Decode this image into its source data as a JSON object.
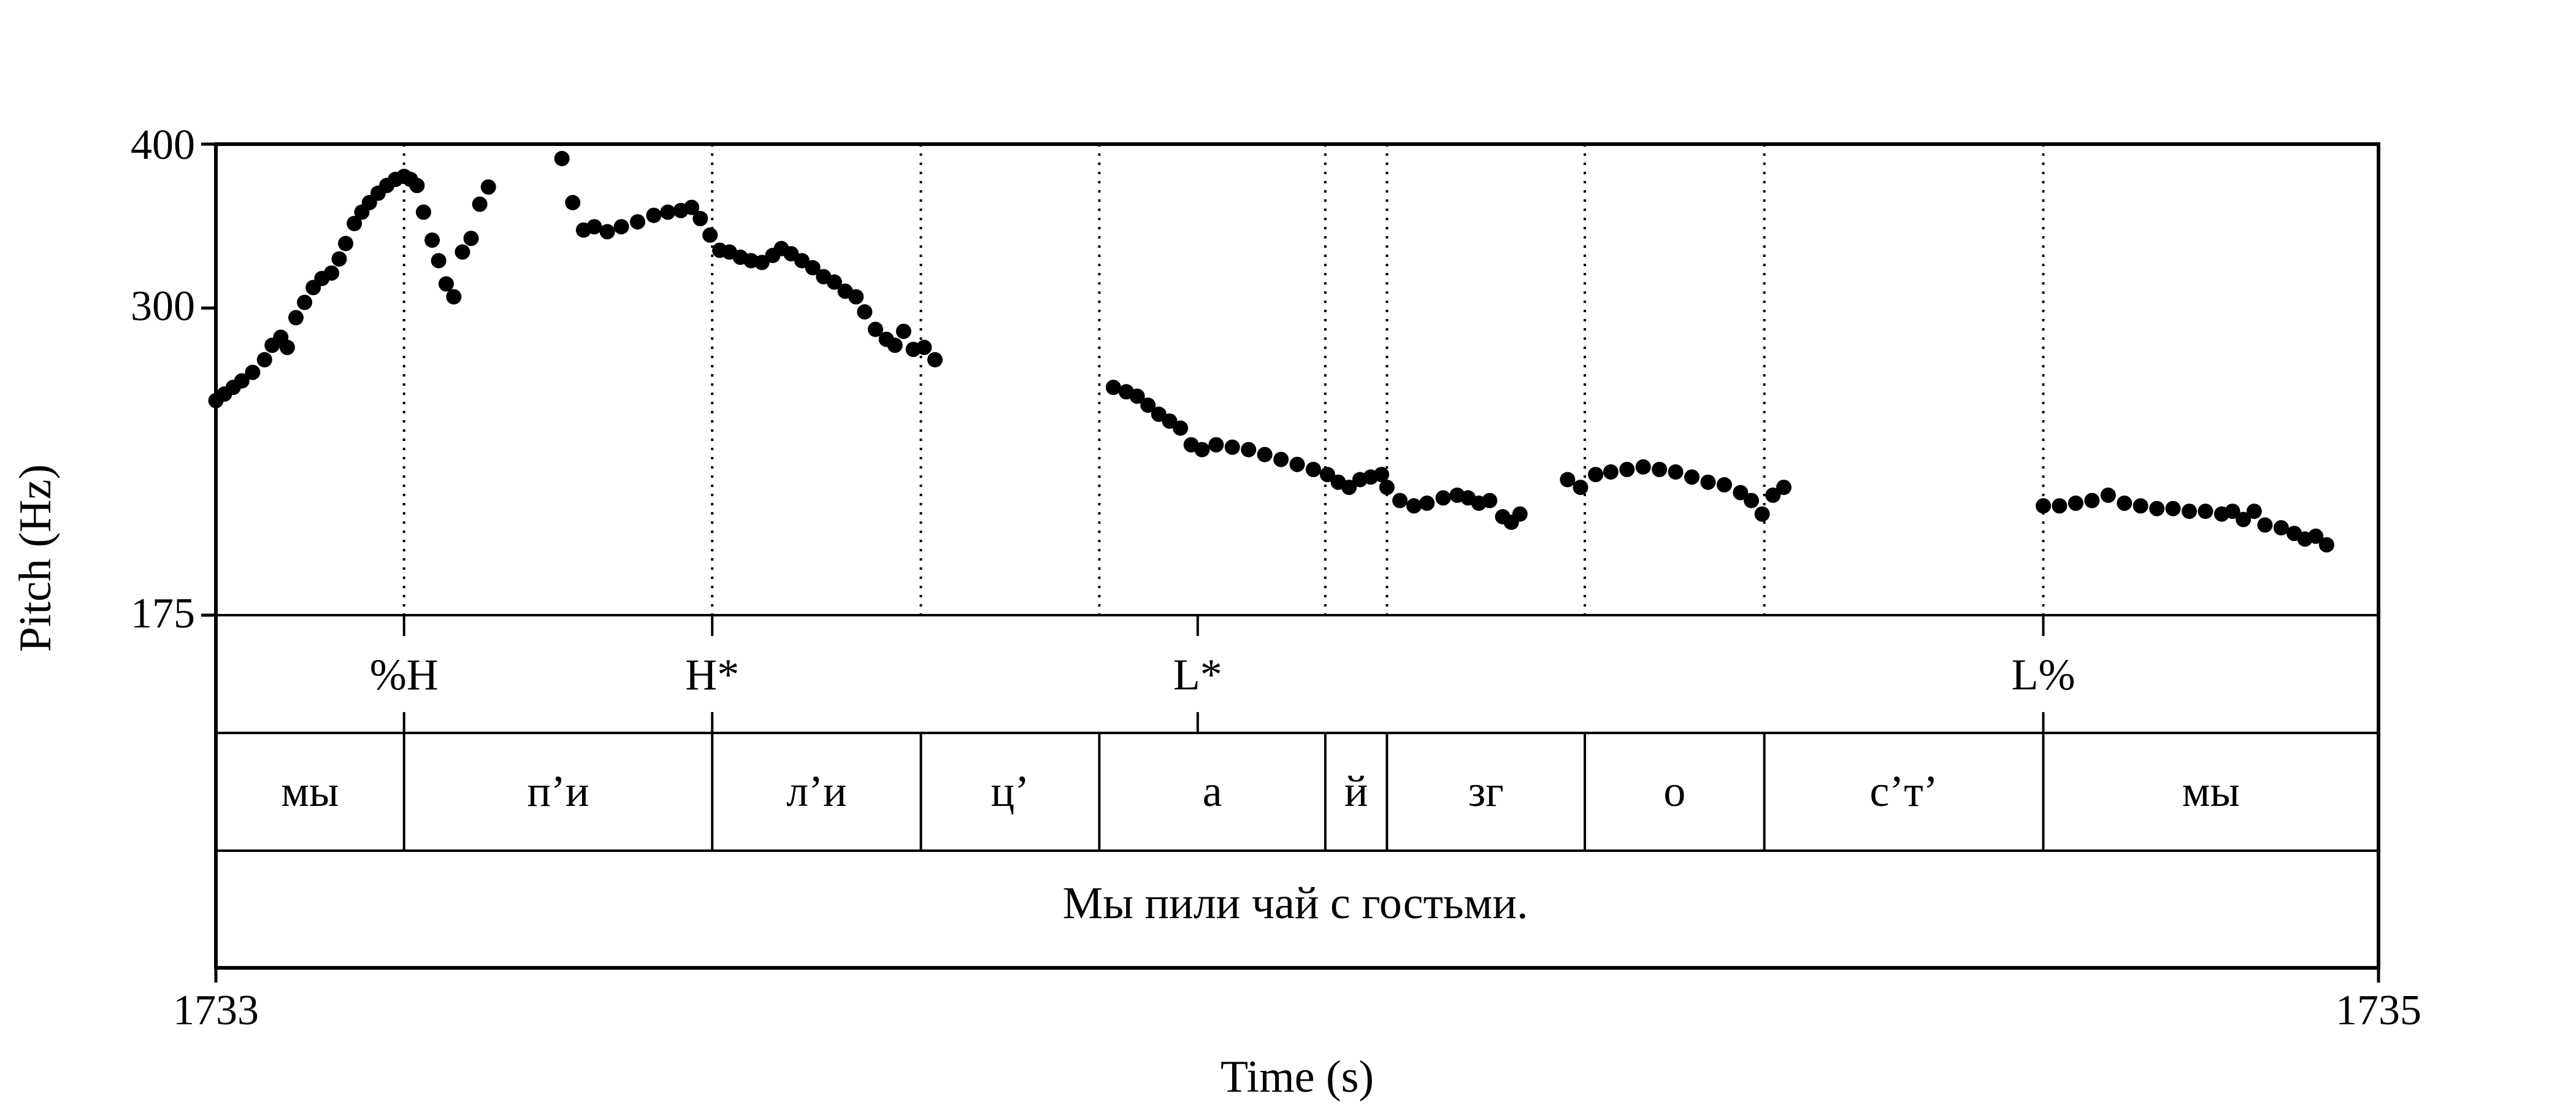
{
  "chart_data": {
    "type": "scatter",
    "title": "",
    "xlabel": "Time (s)",
    "ylabel": "Pitch (Hz)",
    "x_ticks": [
      "1733",
      "1735"
    ],
    "xlim": [
      1733,
      1735
    ],
    "y_ticks": [
      "175",
      "300",
      "400"
    ],
    "ylim": [
      175,
      400
    ],
    "y_scale": "log",
    "series": [
      {
        "marker_color": "#000000",
        "points": [
          [
            1733.0,
            255
          ],
          [
            1733.008,
            258
          ],
          [
            1733.016,
            261
          ],
          [
            1733.024,
            264
          ],
          [
            1733.034,
            268
          ],
          [
            1733.045,
            274
          ],
          [
            1733.052,
            281
          ],
          [
            1733.06,
            285
          ],
          [
            1733.066,
            280
          ],
          [
            1733.074,
            295
          ],
          [
            1733.082,
            303
          ],
          [
            1733.09,
            311
          ],
          [
            1733.098,
            316
          ],
          [
            1733.107,
            319
          ],
          [
            1733.114,
            327
          ],
          [
            1733.12,
            336
          ],
          [
            1733.128,
            348
          ],
          [
            1733.135,
            355
          ],
          [
            1733.142,
            361
          ],
          [
            1733.15,
            367
          ],
          [
            1733.158,
            372
          ],
          [
            1733.166,
            376
          ],
          [
            1733.174,
            378
          ],
          [
            1733.18,
            376
          ],
          [
            1733.186,
            372
          ],
          [
            1733.192,
            355
          ],
          [
            1733.2,
            338
          ],
          [
            1733.206,
            326
          ],
          [
            1733.213,
            313
          ],
          [
            1733.22,
            306
          ],
          [
            1733.228,
            331
          ],
          [
            1733.236,
            339
          ],
          [
            1733.244,
            360
          ],
          [
            1733.252,
            371
          ],
          [
            1733.32,
            390
          ],
          [
            1733.33,
            361
          ],
          [
            1733.34,
            344
          ],
          [
            1733.35,
            346
          ],
          [
            1733.362,
            343
          ],
          [
            1733.375,
            346
          ],
          [
            1733.39,
            349
          ],
          [
            1733.405,
            353
          ],
          [
            1733.418,
            355
          ],
          [
            1733.43,
            356
          ],
          [
            1733.44,
            358
          ],
          [
            1733.448,
            351
          ],
          [
            1733.457,
            341
          ],
          [
            1733.466,
            332
          ],
          [
            1733.475,
            331
          ],
          [
            1733.485,
            328
          ],
          [
            1733.495,
            326
          ],
          [
            1733.505,
            325
          ],
          [
            1733.515,
            329
          ],
          [
            1733.523,
            333
          ],
          [
            1733.532,
            330
          ],
          [
            1733.542,
            326
          ],
          [
            1733.552,
            322
          ],
          [
            1733.562,
            317
          ],
          [
            1733.572,
            314
          ],
          [
            1733.582,
            309
          ],
          [
            1733.592,
            306
          ],
          [
            1733.6,
            298
          ],
          [
            1733.61,
            289
          ],
          [
            1733.62,
            284
          ],
          [
            1733.628,
            281
          ],
          [
            1733.636,
            288
          ],
          [
            1733.645,
            279
          ],
          [
            1733.655,
            280
          ],
          [
            1733.665,
            274
          ],
          [
            1733.83,
            261
          ],
          [
            1733.842,
            259
          ],
          [
            1733.852,
            257
          ],
          [
            1733.862,
            253
          ],
          [
            1733.872,
            249
          ],
          [
            1733.882,
            246
          ],
          [
            1733.892,
            243
          ],
          [
            1733.902,
            236
          ],
          [
            1733.912,
            234
          ],
          [
            1733.925,
            236
          ],
          [
            1733.94,
            235
          ],
          [
            1733.955,
            234
          ],
          [
            1733.97,
            232
          ],
          [
            1733.985,
            230
          ],
          [
            1734.0,
            228
          ],
          [
            1734.015,
            226
          ],
          [
            1734.028,
            224
          ],
          [
            1734.038,
            221
          ],
          [
            1734.048,
            219
          ],
          [
            1734.058,
            222
          ],
          [
            1734.068,
            223
          ],
          [
            1734.078,
            224
          ],
          [
            1734.083,
            219
          ],
          [
            1734.095,
            214
          ],
          [
            1734.108,
            212
          ],
          [
            1734.12,
            213
          ],
          [
            1734.135,
            215
          ],
          [
            1734.148,
            216
          ],
          [
            1734.158,
            215
          ],
          [
            1734.168,
            213
          ],
          [
            1734.178,
            214
          ],
          [
            1734.19,
            208
          ],
          [
            1734.198,
            206
          ],
          [
            1734.206,
            209
          ],
          [
            1734.25,
            222
          ],
          [
            1734.262,
            219
          ],
          [
            1734.276,
            224
          ],
          [
            1734.29,
            225
          ],
          [
            1734.305,
            226
          ],
          [
            1734.32,
            227
          ],
          [
            1734.335,
            226
          ],
          [
            1734.35,
            225
          ],
          [
            1734.365,
            223
          ],
          [
            1734.38,
            221
          ],
          [
            1734.395,
            220
          ],
          [
            1734.41,
            217
          ],
          [
            1734.42,
            214
          ],
          [
            1734.43,
            209
          ],
          [
            1734.44,
            216
          ],
          [
            1734.45,
            219
          ],
          [
            1734.69,
            212
          ],
          [
            1734.705,
            212
          ],
          [
            1734.72,
            213
          ],
          [
            1734.735,
            214
          ],
          [
            1734.75,
            216
          ],
          [
            1734.765,
            213
          ],
          [
            1734.78,
            212
          ],
          [
            1734.795,
            211
          ],
          [
            1734.81,
            211
          ],
          [
            1734.825,
            210
          ],
          [
            1734.84,
            210
          ],
          [
            1734.855,
            209
          ],
          [
            1734.865,
            210
          ],
          [
            1734.875,
            207
          ],
          [
            1734.885,
            210
          ],
          [
            1734.895,
            205
          ],
          [
            1734.91,
            204
          ],
          [
            1734.922,
            202
          ],
          [
            1734.932,
            200
          ],
          [
            1734.942,
            201
          ],
          [
            1734.952,
            198
          ]
        ]
      }
    ],
    "tiers": {
      "tones": [
        {
          "time": 1733.174,
          "label": "%H"
        },
        {
          "time": 1733.459,
          "label": "H*"
        },
        {
          "time": 1733.908,
          "label": "L*"
        },
        {
          "time": 1734.69,
          "label": "L%"
        }
      ],
      "segments": [
        {
          "start": 1733.0,
          "end": 1733.174,
          "label": "мы"
        },
        {
          "start": 1733.174,
          "end": 1733.459,
          "label": "п’и"
        },
        {
          "start": 1733.459,
          "end": 1733.652,
          "label": "л’и"
        },
        {
          "start": 1733.652,
          "end": 1733.817,
          "label": "ц’"
        },
        {
          "start": 1733.817,
          "end": 1734.026,
          "label": "а"
        },
        {
          "start": 1734.026,
          "end": 1734.083,
          "label": "й"
        },
        {
          "start": 1734.083,
          "end": 1734.266,
          "label": "зг"
        },
        {
          "start": 1734.266,
          "end": 1734.432,
          "label": "о"
        },
        {
          "start": 1734.432,
          "end": 1734.69,
          "label": "с’т’"
        },
        {
          "start": 1734.69,
          "end": 1735.0,
          "label": "мы"
        }
      ],
      "sentence": "Мы пили чай с гостьми."
    }
  }
}
